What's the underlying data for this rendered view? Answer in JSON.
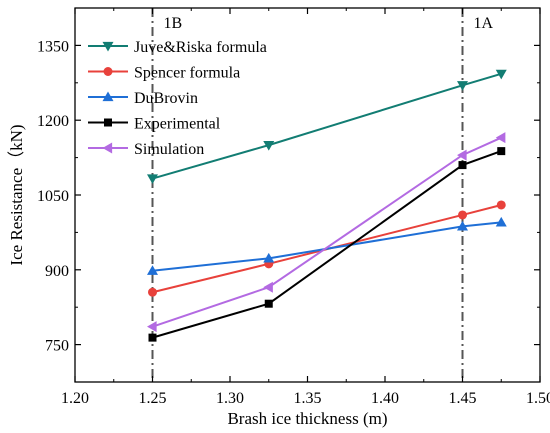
{
  "chart_data": {
    "type": "line",
    "title": "",
    "xlabel": "Brash ice thickness (m)",
    "ylabel": "Ice Resistance（kN)",
    "xlim": [
      1.2,
      1.5
    ],
    "ylim": [
      675,
      1425
    ],
    "x_ticks": [
      1.2,
      1.25,
      1.3,
      1.35,
      1.4,
      1.45,
      1.5
    ],
    "x_tick_labels": [
      "1.20",
      "1.25",
      "1.30",
      "1.35",
      "1.40",
      "1.45",
      "1.50"
    ],
    "y_ticks": [
      750,
      900,
      1050,
      1200,
      1350
    ],
    "y_tick_labels": [
      "750",
      "900",
      "1050",
      "1200",
      "1350"
    ],
    "grid": false,
    "legend_position": "top-left",
    "x": [
      1.25,
      1.325,
      1.45,
      1.475
    ],
    "series": [
      {
        "name": "Juve&Riska formula",
        "values": [
          1083,
          1150,
          1270,
          1293
        ],
        "color": "#127d73",
        "marker": "triangle-down"
      },
      {
        "name": "Spencer formula",
        "values": [
          855,
          912,
          1010,
          1030
        ],
        "color": "#e8413b",
        "marker": "circle"
      },
      {
        "name": "DuBrovin",
        "values": [
          898,
          923,
          987,
          995
        ],
        "color": "#1f6fd6",
        "marker": "triangle-up"
      },
      {
        "name": "Experimental",
        "values": [
          764,
          832,
          1110,
          1138
        ],
        "color": "#000000",
        "marker": "square"
      },
      {
        "name": "Simulation",
        "values": [
          786,
          865,
          1130,
          1165
        ],
        "color": "#b36ae2",
        "marker": "triangle-left"
      }
    ],
    "annotations": [
      {
        "label": "1B",
        "x": 1.25,
        "style": "dash-dot vertical line"
      },
      {
        "label": "1A",
        "x": 1.45,
        "style": "dash-dot vertical line"
      }
    ]
  }
}
